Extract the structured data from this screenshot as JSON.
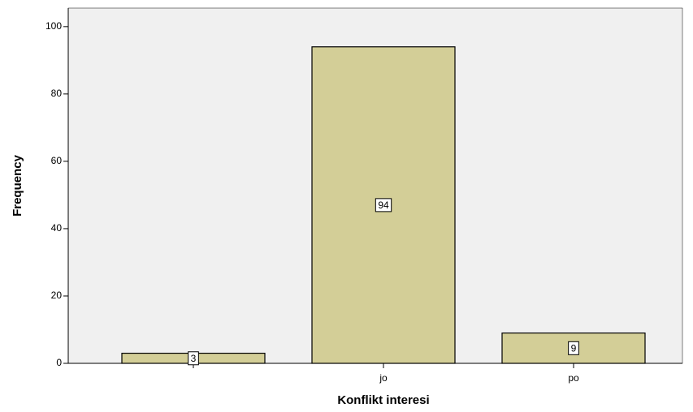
{
  "chart_data": {
    "type": "bar",
    "x_label": "Konflikt interesi",
    "y_label": "Frequency",
    "categories": [
      null,
      "jo",
      "po"
    ],
    "values": [
      3,
      94,
      9
    ],
    "color": "#d3ce97",
    "ylim": [
      0,
      105.5
    ],
    "yticks": [
      0,
      20,
      40,
      60,
      80,
      100
    ]
  }
}
